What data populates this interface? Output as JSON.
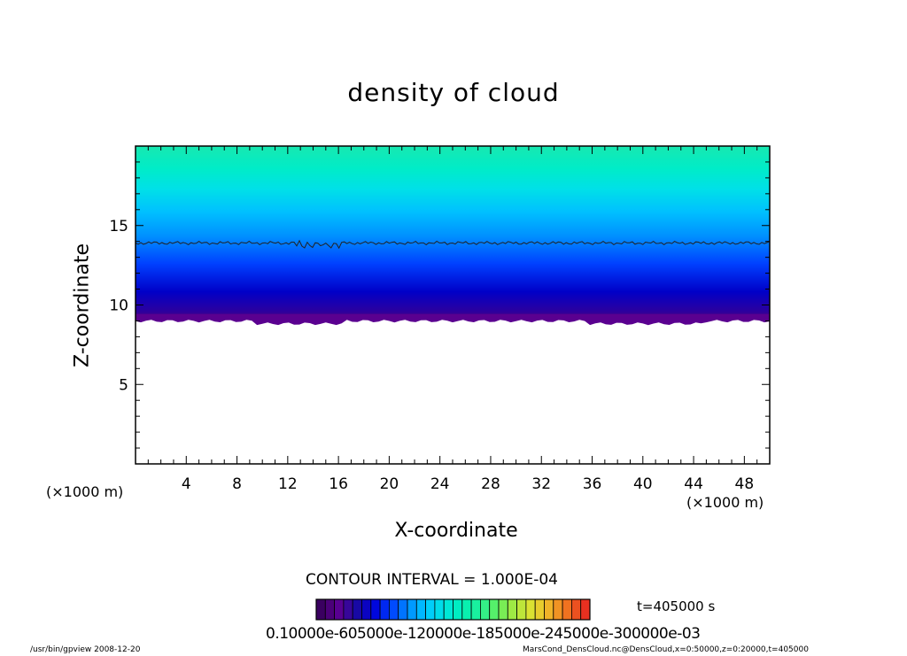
{
  "chart_data": {
    "type": "heatmap",
    "title": "density of cloud",
    "xlabel": "X-coordinate",
    "ylabel": "Z-coordinate",
    "x_unit_label": "(×1000 m)",
    "y_unit_label": "(×1000 m)",
    "xlim": [
      0,
      50
    ],
    "ylim": [
      0,
      20
    ],
    "x_ticks": [
      4,
      8,
      12,
      16,
      20,
      24,
      28,
      32,
      36,
      40,
      44,
      48
    ],
    "y_ticks": [
      5,
      10,
      15
    ],
    "contour_interval_text": "CONTOUR INTERVAL = 1.000E-04",
    "time_text": "t=405000 s",
    "colorbar_text": "0.10000e-605000e-120000e-185000e-245000e-300000e-03",
    "colorbar_range": [
      0.0001,
      0.003
    ],
    "colorbar_levels": 30,
    "cloud_base_z": 9.1,
    "contour_line_z": 13.9,
    "palette": [
      "#3a0060",
      "#5a0090",
      "#1a0aa0",
      "#0000d8",
      "#0040ff",
      "#0090ff",
      "#00c8ff",
      "#00e4e0",
      "#00f0b8",
      "#20f098",
      "#60f060",
      "#a8e840",
      "#e0e030",
      "#f0b028",
      "#f07020",
      "#e83020"
    ]
  },
  "footer": {
    "left": "/usr/bin/gpview   2008-12-20",
    "right": "MarsCond_DensCloud.nc@DensCloud,x=0:50000,z=0:20000,t=405000"
  }
}
